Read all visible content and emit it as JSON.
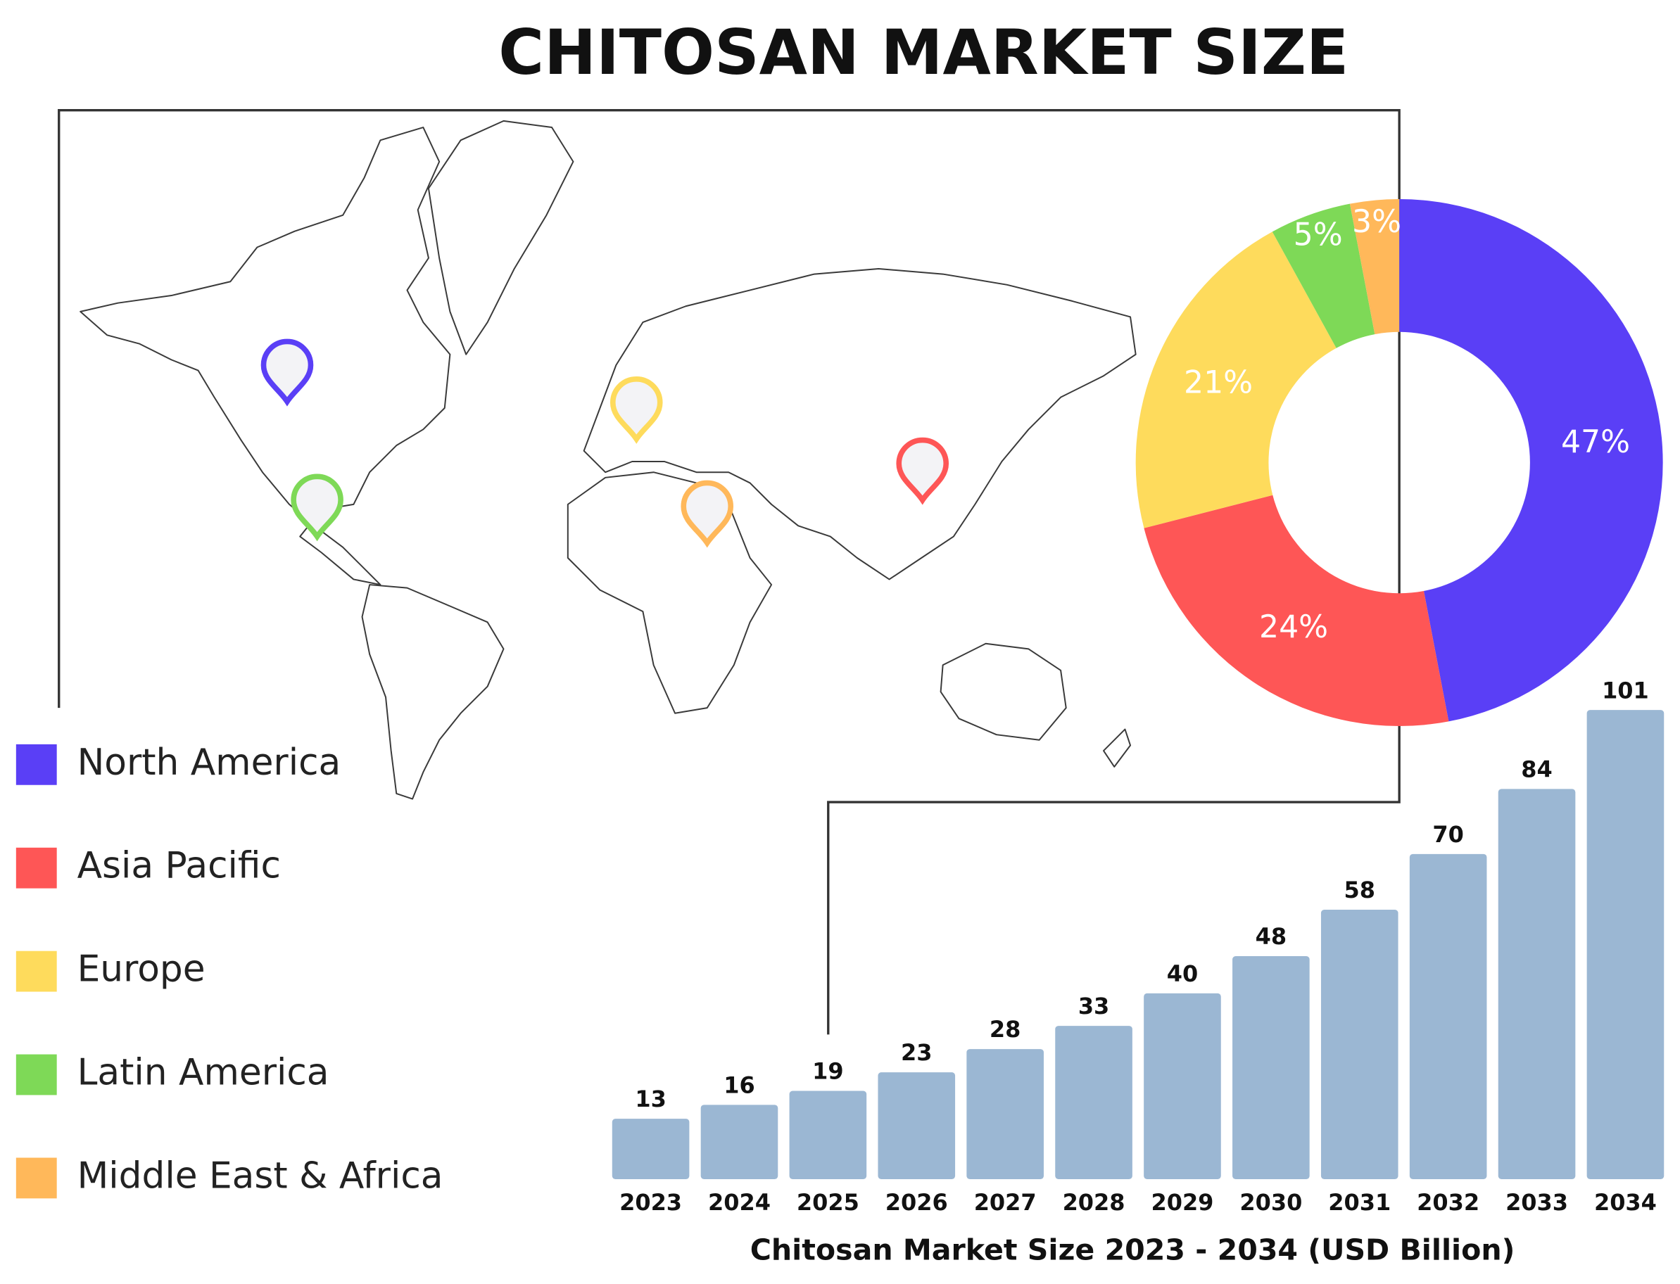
{
  "title": "CHITOSAN MARKET SIZE",
  "chart_data": [
    {
      "type": "donut",
      "categories": [
        "North America",
        "Asia Pacific",
        "Europe",
        "Latin America",
        "Middle East & Africa"
      ],
      "values": [
        47,
        24,
        21,
        5,
        3
      ],
      "value_labels": [
        "47%",
        "24%",
        "21%",
        "5%",
        "3%"
      ],
      "colors": [
        "#5a3ff6",
        "#fe5656",
        "#fedb5c",
        "#7ed957",
        "#ffb85a"
      ]
    },
    {
      "type": "bar",
      "categories": [
        "2023",
        "2024",
        "2025",
        "2026",
        "2027",
        "2028",
        "2029",
        "2030",
        "2031",
        "2032",
        "2033",
        "2034"
      ],
      "values": [
        13,
        16,
        19,
        23,
        28,
        33,
        40,
        48,
        58,
        70,
        84,
        101
      ],
      "color": "#9bb7d3",
      "xlabel": "Chitosan Market Size 2023 - 2034 (USD Billion)"
    }
  ]
}
